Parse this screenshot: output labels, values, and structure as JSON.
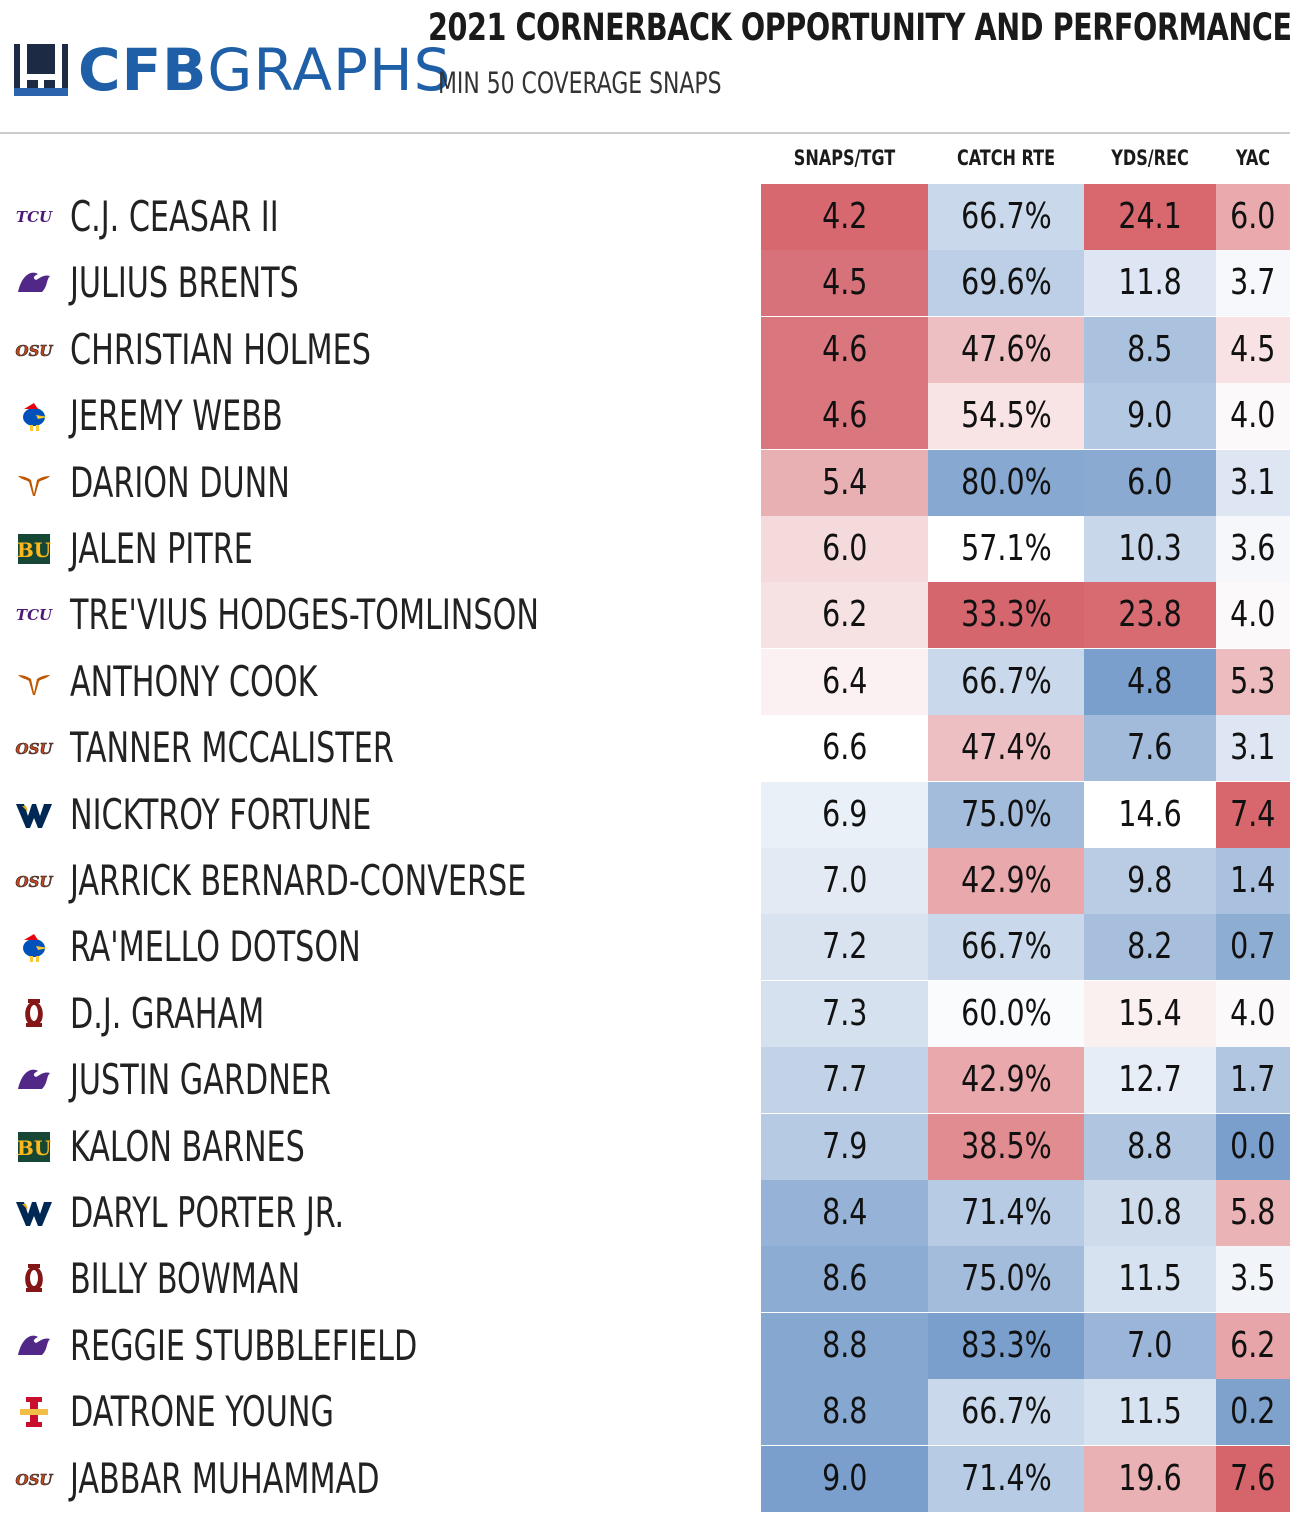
{
  "brand": {
    "name_bold": "CFB",
    "name_light": "GRAPHS"
  },
  "title": "2021 CORNERBACK OPPORTUNITY AND PERFORMANCE",
  "subtitle": "MIN 50 COVERAGE SNAPS",
  "chart_data": {
    "type": "table",
    "columns": [
      "SNAPS/TGT",
      "CATCH RTE",
      "YDS/REC",
      "YAC"
    ],
    "rows": [
      {
        "team": "tcu",
        "player": "C.J. CEASAR II",
        "values": [
          "4.2",
          "66.7%",
          "24.1",
          "6.0"
        ],
        "colors": [
          "#d7686f",
          "#c9d8ea",
          "#d8676e",
          "#e9a9ad"
        ]
      },
      {
        "team": "kstate",
        "player": "JULIUS BRENTS",
        "values": [
          "4.5",
          "69.6%",
          "11.8",
          "3.7"
        ],
        "colors": [
          "#d8727a",
          "#bccfe6",
          "#dde6f2",
          "#f7f8fb"
        ]
      },
      {
        "team": "okstate",
        "player": "CHRISTIAN HOLMES",
        "values": [
          "4.6",
          "47.6%",
          "8.5",
          "4.5"
        ],
        "colors": [
          "#da777e",
          "#eebfc2",
          "#abc2df",
          "#f8e2e3"
        ]
      },
      {
        "team": "kansas",
        "player": "JEREMY WEBB",
        "values": [
          "4.6",
          "54.5%",
          "9.0",
          "4.0"
        ],
        "colors": [
          "#da777e",
          "#f8e4e5",
          "#b3c8e2",
          "#fbf9fa"
        ]
      },
      {
        "team": "texas",
        "player": "DARION DUNN",
        "values": [
          "5.4",
          "80.0%",
          "6.0",
          "3.1"
        ],
        "colors": [
          "#e9b0b3",
          "#87a8d1",
          "#8aaad1",
          "#dde6f2"
        ]
      },
      {
        "team": "baylor",
        "player": "JALEN PITRE",
        "values": [
          "6.0",
          "57.1%",
          "10.3",
          "3.6"
        ],
        "colors": [
          "#f5dadc",
          "#ffffff",
          "#c8d7ea",
          "#f5f7fb"
        ]
      },
      {
        "team": "tcu",
        "player": "TRE'VIUS HODGES-TOMLINSON",
        "values": [
          "6.2",
          "33.3%",
          "23.8",
          "4.0"
        ],
        "colors": [
          "#f7e2e3",
          "#d6666d",
          "#d86a71",
          "#fbf9fa"
        ]
      },
      {
        "team": "texas",
        "player": "ANTHONY COOK",
        "values": [
          "6.4",
          "66.7%",
          "4.8",
          "5.3"
        ],
        "colors": [
          "#fbf1f2",
          "#c9d8ea",
          "#7b9fcc",
          "#edbcbf"
        ]
      },
      {
        "team": "okstate",
        "player": "TANNER MCCALISTER",
        "values": [
          "6.6",
          "47.4%",
          "7.6",
          "3.1"
        ],
        "colors": [
          "#ffffff",
          "#eebfc2",
          "#a2bbdb",
          "#dde6f2"
        ]
      },
      {
        "team": "wvu",
        "player": "NICKTROY FORTUNE",
        "values": [
          "6.9",
          "75.0%",
          "14.6",
          "7.4"
        ],
        "colors": [
          "#eaf0f7",
          "#a3bcdb",
          "#ffffff",
          "#d8666d"
        ]
      },
      {
        "team": "okstate",
        "player": "JARRICK BERNARD-CONVERSE",
        "values": [
          "7.0",
          "42.9%",
          "9.8",
          "1.4"
        ],
        "colors": [
          "#e3eaf4",
          "#e8a8ac",
          "#b9cce4",
          "#a9c0de"
        ]
      },
      {
        "team": "kansas",
        "player": "RA'MELLO DOTSON",
        "values": [
          "7.2",
          "66.7%",
          "8.2",
          "0.7"
        ],
        "colors": [
          "#d9e3f0",
          "#c9d8ea",
          "#a7bfdd",
          "#8eadd3"
        ]
      },
      {
        "team": "ou",
        "player": "D.J. GRAHAM",
        "values": [
          "7.3",
          "60.0%",
          "15.4",
          "4.0"
        ],
        "colors": [
          "#d5e1ef",
          "#fafbfd",
          "#fbf0f0",
          "#fbf9fa"
        ]
      },
      {
        "team": "kstate",
        "player": "JUSTIN GARDNER",
        "values": [
          "7.7",
          "42.9%",
          "12.7",
          "1.7"
        ],
        "colors": [
          "#c2d3e8",
          "#e8a8ac",
          "#e6edf6",
          "#b1c6e1"
        ]
      },
      {
        "team": "baylor",
        "player": "KALON BARNES",
        "values": [
          "7.9",
          "38.5%",
          "8.8",
          "0.0"
        ],
        "colors": [
          "#b6cae3",
          "#e08c91",
          "#afc5e0",
          "#7b9fcc"
        ]
      },
      {
        "team": "wvu",
        "player": "DARYL PORTER JR.",
        "values": [
          "8.4",
          "71.4%",
          "10.8",
          "5.8"
        ],
        "colors": [
          "#96b2d6",
          "#b7cbe4",
          "#cddbeb",
          "#eab3b6"
        ]
      },
      {
        "team": "ou",
        "player": "BILLY BOWMAN",
        "values": [
          "8.6",
          "75.0%",
          "11.5",
          "3.5"
        ],
        "colors": [
          "#8dacd3",
          "#a3bcdb",
          "#d7e2f0",
          "#f1f4f9"
        ]
      },
      {
        "team": "kstate",
        "player": "REGGIE STUBBLEFIELD",
        "values": [
          "8.8",
          "83.3%",
          "7.0",
          "6.2"
        ],
        "colors": [
          "#86a7d0",
          "#7b9fcc",
          "#9ab5d7",
          "#e7a5a9"
        ]
      },
      {
        "team": "isu",
        "player": "DATRONE YOUNG",
        "values": [
          "8.8",
          "66.7%",
          "11.5",
          "0.2"
        ],
        "colors": [
          "#86a7d0",
          "#c9d8ea",
          "#d7e2f0",
          "#7fa2cd"
        ]
      },
      {
        "team": "okstate",
        "player": "JABBAR MUHAMMAD",
        "values": [
          "9.0",
          "71.4%",
          "19.6",
          "7.6"
        ],
        "colors": [
          "#7b9fcc",
          "#b7cbe4",
          "#eab1b4",
          "#d6646b"
        ]
      }
    ]
  }
}
